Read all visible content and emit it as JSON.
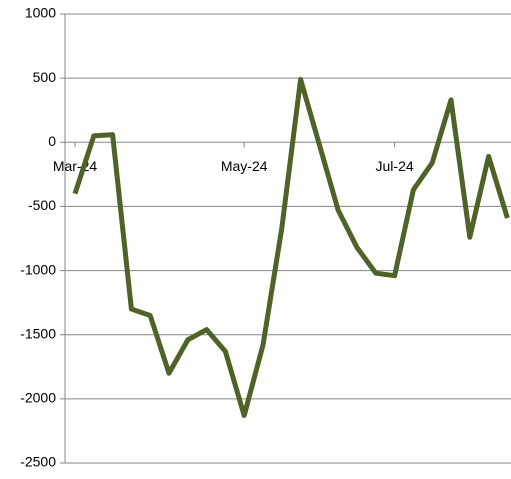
{
  "chart_data": {
    "type": "line",
    "categories": [
      "Mar-24",
      null,
      null,
      null,
      null,
      null,
      null,
      null,
      null,
      "May-24",
      null,
      null,
      null,
      null,
      null,
      null,
      null,
      "Jul-24",
      null,
      null,
      null,
      null,
      null,
      null
    ],
    "series": [
      {
        "color": "#4f6228",
        "values": [
          -400,
          50,
          60,
          -1300,
          -1350,
          -1800,
          -1540,
          -1460,
          -1630,
          -2130,
          -1580,
          -670,
          490,
          -20,
          -530,
          -820,
          -1020,
          -1040,
          -370,
          -160,
          330,
          -740,
          -110,
          -590
        ]
      }
    ],
    "ylim": [
      -2500,
      1000
    ],
    "yticks": [
      -2500,
      -2000,
      -1500,
      -1000,
      -500,
      0,
      500,
      1000
    ],
    "grid": true
  }
}
